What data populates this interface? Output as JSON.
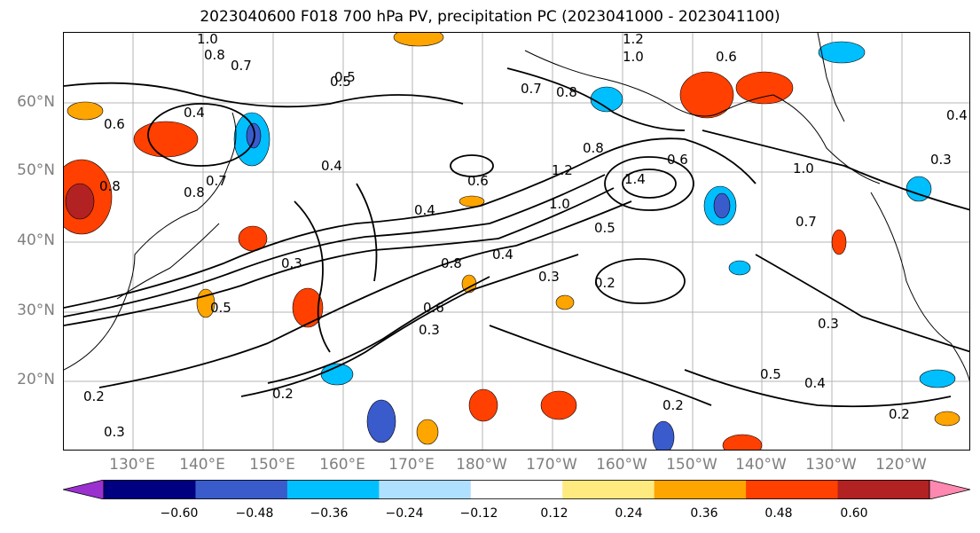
{
  "title": "2023040600 F018 700 hPa PV, precipitation PC (2023041000 - 2023041100)",
  "lat_labels": [
    "60°N",
    "50°N",
    "40°N",
    "30°N",
    "20°N"
  ],
  "lon_labels": [
    "130°E",
    "140°E",
    "150°E",
    "160°E",
    "170°E",
    "180°W",
    "170°W",
    "160°W",
    "150°W",
    "140°W",
    "130°W",
    "120°W"
  ],
  "colorbar": {
    "colors": [
      "#9b30d0",
      "#000080",
      "#3a5bcc",
      "#00bfff",
      "#b0e0ff",
      "#ffffff",
      "#ffea80",
      "#ffa500",
      "#ff4000",
      "#b22222",
      "#ff88b0"
    ],
    "tick_labels": [
      "−0.60",
      "−0.48",
      "−0.36",
      "−0.24",
      "−0.12",
      "0.12",
      "0.24",
      "0.36",
      "0.48",
      "0.60"
    ]
  },
  "contour_labels": [
    {
      "text": "1.0"
    },
    {
      "text": "0.8"
    },
    {
      "text": "0.7"
    },
    {
      "text": "0.5"
    },
    {
      "text": "1.2"
    },
    {
      "text": "1.0"
    },
    {
      "text": "0.6"
    },
    {
      "text": "0.7"
    },
    {
      "text": "0.8"
    },
    {
      "text": "0.4"
    },
    {
      "text": "0.6"
    },
    {
      "text": "0.8"
    },
    {
      "text": "0.7"
    },
    {
      "text": "0.4"
    },
    {
      "text": "1.0"
    },
    {
      "text": "0.3"
    },
    {
      "text": "0.8"
    },
    {
      "text": "0.8"
    },
    {
      "text": "0.6"
    },
    {
      "text": "1.2"
    },
    {
      "text": "1.0"
    },
    {
      "text": "1.4"
    },
    {
      "text": "0.5"
    },
    {
      "text": "0.6"
    },
    {
      "text": "0.4"
    },
    {
      "text": "0.4"
    },
    {
      "text": "0.5"
    },
    {
      "text": "0.3"
    },
    {
      "text": "0.3"
    },
    {
      "text": "0.5"
    },
    {
      "text": "0.8"
    },
    {
      "text": "0.4"
    },
    {
      "text": "0.6"
    },
    {
      "text": "0.3"
    },
    {
      "text": "0.2"
    },
    {
      "text": "0.2"
    },
    {
      "text": "0.3"
    },
    {
      "text": "0.2"
    },
    {
      "text": "0.5"
    },
    {
      "text": "0.4"
    },
    {
      "text": "0.2"
    },
    {
      "text": "0.2"
    },
    {
      "text": "0.3"
    },
    {
      "text": "0.7"
    }
  ]
}
